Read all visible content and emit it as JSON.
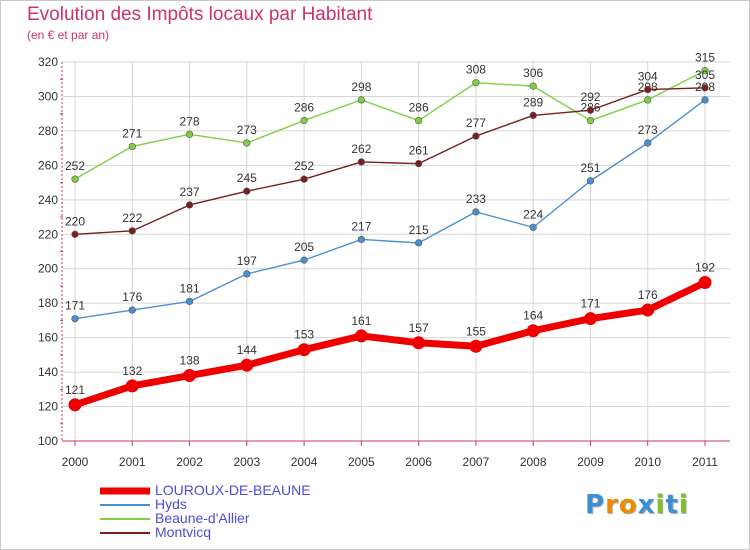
{
  "chart_data": {
    "type": "line",
    "title": "Evolution des Impôts locaux par Habitant",
    "subtitle": "(en € et par an)",
    "xlabel": "",
    "ylabel": "",
    "x": [
      "2000",
      "2001",
      "2002",
      "2003",
      "2004",
      "2005",
      "2006",
      "2007",
      "2008",
      "2009",
      "2010",
      "2011"
    ],
    "ylim": [
      100,
      320
    ],
    "yticks": [
      100,
      120,
      140,
      160,
      180,
      200,
      220,
      240,
      260,
      280,
      300,
      320
    ],
    "grid": true,
    "legend_position": "bottom-left",
    "series": [
      {
        "name": "LOUROUX-DE-BEAUNE",
        "color": "#ee0000",
        "emphasis": true,
        "values": [
          121,
          132,
          138,
          144,
          153,
          161,
          157,
          155,
          164,
          171,
          176,
          192
        ]
      },
      {
        "name": "Hyds",
        "color": "#4a90d0",
        "emphasis": false,
        "values": [
          171,
          176,
          181,
          197,
          205,
          217,
          215,
          233,
          224,
          251,
          273,
          298
        ]
      },
      {
        "name": "Beaune-d'Allier",
        "color": "#7fd040",
        "emphasis": false,
        "values": [
          252,
          271,
          278,
          273,
          286,
          298,
          286,
          308,
          306,
          286,
          298,
          315
        ]
      },
      {
        "name": "Montvicq",
        "color": "#7a1e1e",
        "emphasis": false,
        "values": [
          220,
          222,
          237,
          245,
          252,
          262,
          261,
          277,
          289,
          292,
          304,
          305
        ]
      }
    ]
  },
  "logo": {
    "letters": [
      "P",
      "r",
      "o",
      "x",
      "i",
      "t",
      "i"
    ],
    "colors": [
      "#3a8fd6",
      "#f08a00",
      "#f08a00",
      "#3a8fd6",
      "#7fc028",
      "#3a8fd6",
      "#7fc028"
    ]
  }
}
